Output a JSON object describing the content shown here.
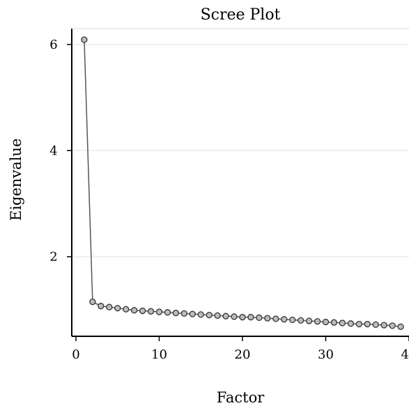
{
  "chart_data": {
    "type": "line",
    "title": "Scree Plot",
    "xlabel": "Factor",
    "ylabel": "Eigenvalue",
    "xlim": [
      -0.5,
      40
    ],
    "ylim": [
      0.5,
      6.3
    ],
    "xticks": [
      0,
      10,
      20,
      30,
      40
    ],
    "yticks": [
      2,
      4,
      6
    ],
    "xtick_labels": [
      "0",
      "10",
      "20",
      "30",
      "40"
    ],
    "ytick_labels": [
      "2",
      "4",
      "6"
    ],
    "grid": "horizontal",
    "legend": "none",
    "line_color": "#555555",
    "marker": "open-circle",
    "series": [
      {
        "x": [
          1,
          2,
          3,
          4,
          5,
          6,
          7,
          8,
          9,
          10,
          11,
          12,
          13,
          14,
          15,
          16,
          17,
          18,
          19,
          20,
          21,
          22,
          23,
          24,
          25,
          26,
          27,
          28,
          29,
          30,
          31,
          32,
          33,
          34,
          35,
          36,
          37,
          38,
          39
        ],
        "values": [
          6.09,
          1.15,
          1.07,
          1.05,
          1.03,
          1.01,
          0.99,
          0.98,
          0.97,
          0.96,
          0.95,
          0.94,
          0.93,
          0.92,
          0.91,
          0.9,
          0.89,
          0.88,
          0.87,
          0.86,
          0.86,
          0.85,
          0.84,
          0.83,
          0.82,
          0.81,
          0.8,
          0.79,
          0.78,
          0.77,
          0.76,
          0.75,
          0.74,
          0.73,
          0.73,
          0.72,
          0.71,
          0.7,
          0.68
        ]
      }
    ]
  }
}
